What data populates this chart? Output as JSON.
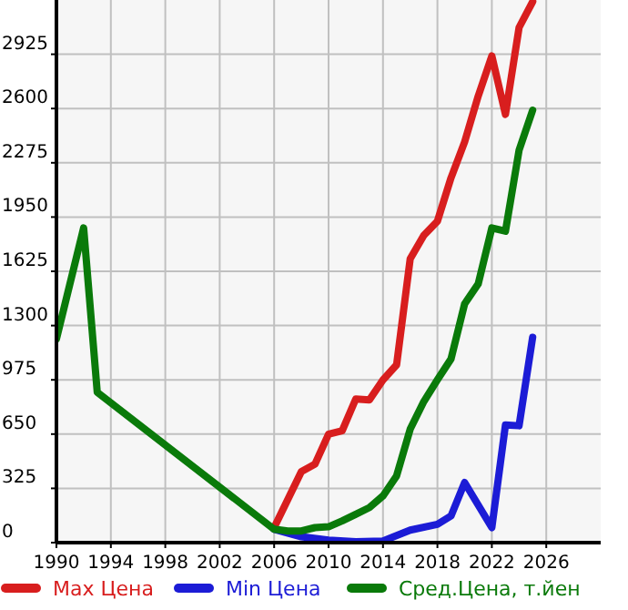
{
  "chart_data": {
    "type": "line",
    "xlim": [
      1990,
      2030
    ],
    "xticks": [
      1990,
      1994,
      1998,
      2002,
      2006,
      2010,
      2014,
      2018,
      2022,
      2026
    ],
    "ylim": [
      0,
      3250
    ],
    "yticks": [
      0,
      325,
      650,
      975,
      1300,
      1625,
      1950,
      2275,
      2600,
      2925
    ],
    "grid": true,
    "legend": "bottom",
    "marker": "none",
    "line_style": "solid",
    "series": [
      {
        "name": "Max Цена",
        "color": "#d81e1e",
        "x": [
          2006,
          2008,
          2009,
          2010,
          2011,
          2012,
          2013,
          2014,
          2015,
          2016,
          2017,
          2018,
          2019,
          2020,
          2021,
          2022,
          2023,
          2024,
          2025
        ],
        "values": [
          90,
          425,
          470,
          650,
          670,
          860,
          855,
          975,
          1065,
          1700,
          1840,
          1925,
          2185,
          2400,
          2675,
          2915,
          2565,
          3085,
          3240
        ]
      },
      {
        "name": "Min Цена",
        "color": "#1c1cd6",
        "x": [
          2006,
          2008,
          2010,
          2012,
          2014,
          2016,
          2018,
          2019,
          2020,
          2022,
          2023,
          2024,
          2025
        ],
        "values": [
          80,
          35,
          15,
          5,
          10,
          75,
          110,
          160,
          360,
          90,
          705,
          700,
          1230
        ]
      },
      {
        "name": "Сред.Цена, т.йен",
        "color": "#0a7a0a",
        "x": [
          1990,
          1992,
          1993,
          2006,
          2007,
          2008,
          2009,
          2010,
          2011,
          2012,
          2013,
          2014,
          2015,
          2016,
          2017,
          2018,
          2019,
          2020,
          2021,
          2022,
          2023,
          2024,
          2025
        ],
        "values": [
          1220,
          1885,
          900,
          80,
          70,
          70,
          90,
          95,
          130,
          170,
          210,
          280,
          400,
          680,
          845,
          975,
          1100,
          1430,
          1550,
          1885,
          1865,
          2350,
          2590
        ]
      }
    ]
  }
}
